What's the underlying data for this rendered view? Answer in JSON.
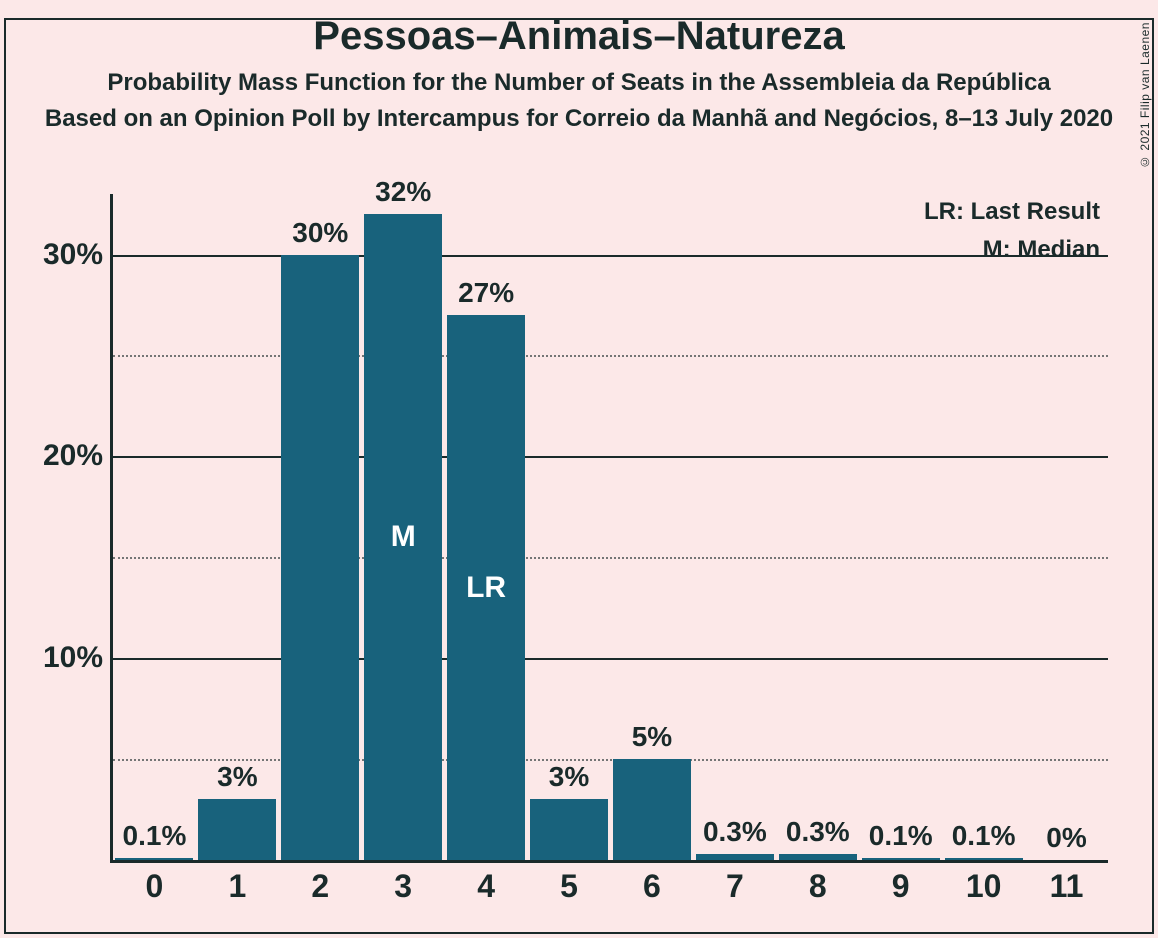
{
  "copyright": "© 2021 Filip van Laenen",
  "title": "Pessoas–Animais–Natureza",
  "subtitle1": "Probability Mass Function for the Number of Seats in the Assembleia da República",
  "subtitle2": "Based on an Opinion Poll by Intercampus for Correio da Manhã and Negócios, 8–13 July 2020",
  "legend_lr": "LR: Last Result",
  "legend_m": "M: Median",
  "chart": {
    "type": "bar",
    "background_color": "#fce8e8",
    "axis_color": "#1a2a2a",
    "bar_color": "#18627c",
    "text_color": "#1a2a2a",
    "bar_text_color": "#ffffff",
    "ymax": 33,
    "bar_width": 0.94,
    "y_major_ticks": [
      10,
      20,
      30
    ],
    "y_minor_ticks": [
      5,
      15,
      25
    ],
    "categories": [
      "0",
      "1",
      "2",
      "3",
      "4",
      "5",
      "6",
      "7",
      "8",
      "9",
      "10",
      "11"
    ],
    "values": [
      0.1,
      3,
      30,
      32,
      27,
      3,
      5,
      0.3,
      0.3,
      0.1,
      0.1,
      0
    ],
    "labels": [
      "0.1%",
      "3%",
      "30%",
      "32%",
      "27%",
      "3%",
      "5%",
      "0.3%",
      "0.3%",
      "0.1%",
      "0.1%",
      "0%"
    ],
    "annotations": [
      null,
      null,
      null,
      "M",
      "LR",
      null,
      null,
      null,
      null,
      null,
      null,
      null
    ],
    "y_tick_fontsize": 30,
    "x_tick_fontsize": 32,
    "bar_label_fontsize": 28,
    "title_fontsize": 40,
    "subtitle_fontsize": 24,
    "legend_fontsize": 24
  }
}
